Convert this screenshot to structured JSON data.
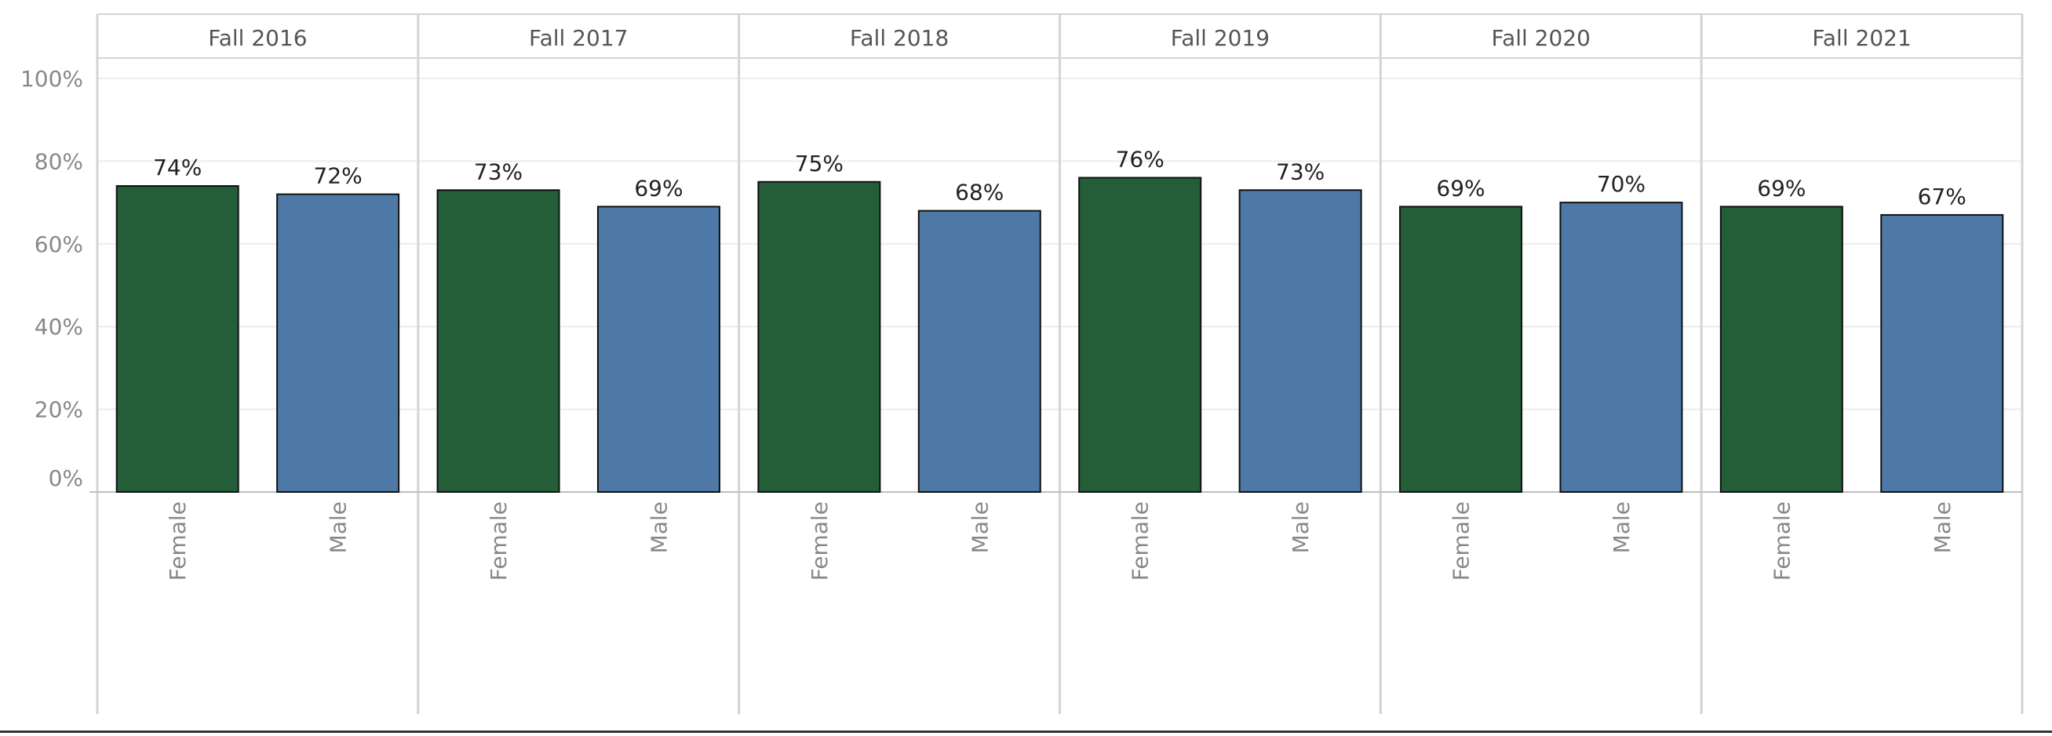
{
  "chart_data": {
    "type": "bar",
    "panels": [
      "Fall 2016",
      "Fall 2017",
      "Fall 2018",
      "Fall 2019",
      "Fall 2020",
      "Fall 2021"
    ],
    "categories": [
      "Female",
      "Male"
    ],
    "values": [
      [
        74,
        72
      ],
      [
        73,
        69
      ],
      [
        75,
        68
      ],
      [
        76,
        73
      ],
      [
        69,
        70
      ],
      [
        69,
        67
      ]
    ],
    "data_labels": [
      [
        "74%",
        "72%"
      ],
      [
        "73%",
        "69%"
      ],
      [
        "75%",
        "68%"
      ],
      [
        "76%",
        "73%"
      ],
      [
        "69%",
        "70%"
      ],
      [
        "69%",
        "67%"
      ]
    ],
    "y_ticks": [
      0,
      20,
      40,
      60,
      80,
      100
    ],
    "y_tick_labels": [
      "0%",
      "20%",
      "40%",
      "60%",
      "80%",
      "100%"
    ],
    "ylim": [
      0,
      100
    ],
    "colors": {
      "Female": "#245e39",
      "Male": "#4e79a7"
    },
    "grid": true,
    "legend": "none",
    "title": "",
    "xlabel": "",
    "ylabel": ""
  }
}
